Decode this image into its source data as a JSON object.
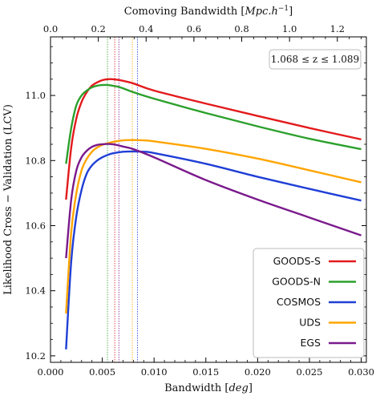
{
  "chart_data": {
    "type": "line",
    "xlabel": "Bandwidth [deg]",
    "ylabel": "Likelihood Cross − Validation (LCV)",
    "top_xlabel": "Comoving Bandwidth [Mpc.h^-1]",
    "top_xlabel_parts": [
      "Comoving Bandwidth [",
      "Mpc.h",
      "−1",
      "]"
    ],
    "xlabel_parts": [
      "Bandwidth [",
      "deg",
      "]"
    ],
    "xlim": [
      0.0,
      0.0305
    ],
    "ylim": [
      10.18,
      11.18
    ],
    "x_ticks": [
      0.0,
      0.005,
      0.01,
      0.015,
      0.02,
      0.025,
      0.03
    ],
    "x_tick_labels": [
      "0.000",
      "0.005",
      "0.010",
      "0.015",
      "0.020",
      "0.025",
      "0.030"
    ],
    "y_ticks": [
      10.2,
      10.4,
      10.6,
      10.8,
      11.0
    ],
    "y_tick_labels": [
      "10.2",
      "10.4",
      "10.6",
      "10.8",
      "11.0"
    ],
    "top_x_ticks": [
      0.0,
      0.2,
      0.4,
      0.6,
      0.8,
      1.0,
      1.2
    ],
    "top_x_tick_labels": [
      "0.0",
      "0.2",
      "0.4",
      "0.6",
      "0.8",
      "1.0",
      "1.2"
    ],
    "top_scale_deg_per_unit": 0.02308,
    "annotation": "1.068 ≤ z ≤ 1.089",
    "legend_position": "lower-right",
    "grid": false,
    "series": [
      {
        "name": "GOODS-S",
        "color": "#e31a1c",
        "x": [
          0.0015,
          0.002,
          0.0025,
          0.003,
          0.0035,
          0.004,
          0.0045,
          0.005,
          0.0055,
          0.006,
          0.0065,
          0.007,
          0.008,
          0.01,
          0.015,
          0.02,
          0.025,
          0.03
        ],
        "y": [
          10.68,
          10.84,
          10.93,
          10.98,
          11.01,
          11.03,
          11.04,
          11.047,
          11.05,
          11.05,
          11.048,
          11.045,
          11.037,
          11.015,
          10.975,
          10.937,
          10.9,
          10.865
        ],
        "peak_x": 0.0062
      },
      {
        "name": "GOODS-N",
        "color": "#2ca02c",
        "x": [
          0.0015,
          0.002,
          0.0025,
          0.003,
          0.0035,
          0.004,
          0.0045,
          0.005,
          0.0055,
          0.006,
          0.0065,
          0.007,
          0.008,
          0.01,
          0.015,
          0.02,
          0.025,
          0.03
        ],
        "y": [
          10.79,
          10.9,
          10.97,
          11.0,
          11.015,
          11.025,
          11.03,
          11.032,
          11.032,
          11.03,
          11.027,
          11.022,
          11.01,
          10.99,
          10.946,
          10.905,
          10.867,
          10.835
        ],
        "peak_x": 0.0055
      },
      {
        "name": "COSMOS",
        "color": "#1f3fd6",
        "x": [
          0.0015,
          0.002,
          0.0025,
          0.003,
          0.0035,
          0.004,
          0.0045,
          0.005,
          0.0055,
          0.006,
          0.007,
          0.008,
          0.009,
          0.01,
          0.015,
          0.02,
          0.025,
          0.03
        ],
        "y": [
          10.22,
          10.49,
          10.63,
          10.71,
          10.76,
          10.785,
          10.8,
          10.81,
          10.817,
          10.822,
          10.827,
          10.828,
          10.827,
          10.823,
          10.79,
          10.75,
          10.713,
          10.677
        ],
        "peak_x": 0.0084
      },
      {
        "name": "UDS",
        "color": "#ffa500",
        "x": [
          0.0015,
          0.002,
          0.0025,
          0.003,
          0.0035,
          0.004,
          0.0045,
          0.005,
          0.0055,
          0.006,
          0.007,
          0.008,
          0.009,
          0.01,
          0.015,
          0.02,
          0.025,
          0.03
        ],
        "y": [
          10.33,
          10.58,
          10.7,
          10.77,
          10.805,
          10.827,
          10.84,
          10.848,
          10.853,
          10.857,
          10.862,
          10.863,
          10.862,
          10.859,
          10.836,
          10.806,
          10.77,
          10.733
        ],
        "peak_x": 0.0079
      },
      {
        "name": "EGS",
        "color": "#7a1a8c",
        "x": [
          0.0015,
          0.002,
          0.0025,
          0.003,
          0.0035,
          0.004,
          0.0045,
          0.005,
          0.0055,
          0.006,
          0.0065,
          0.007,
          0.008,
          0.01,
          0.015,
          0.02,
          0.025,
          0.03
        ],
        "y": [
          10.5,
          10.68,
          10.77,
          10.81,
          10.83,
          10.842,
          10.848,
          10.85,
          10.851,
          10.85,
          10.847,
          10.843,
          10.835,
          10.81,
          10.74,
          10.68,
          10.625,
          10.57
        ],
        "peak_x": 0.0066
      }
    ]
  }
}
